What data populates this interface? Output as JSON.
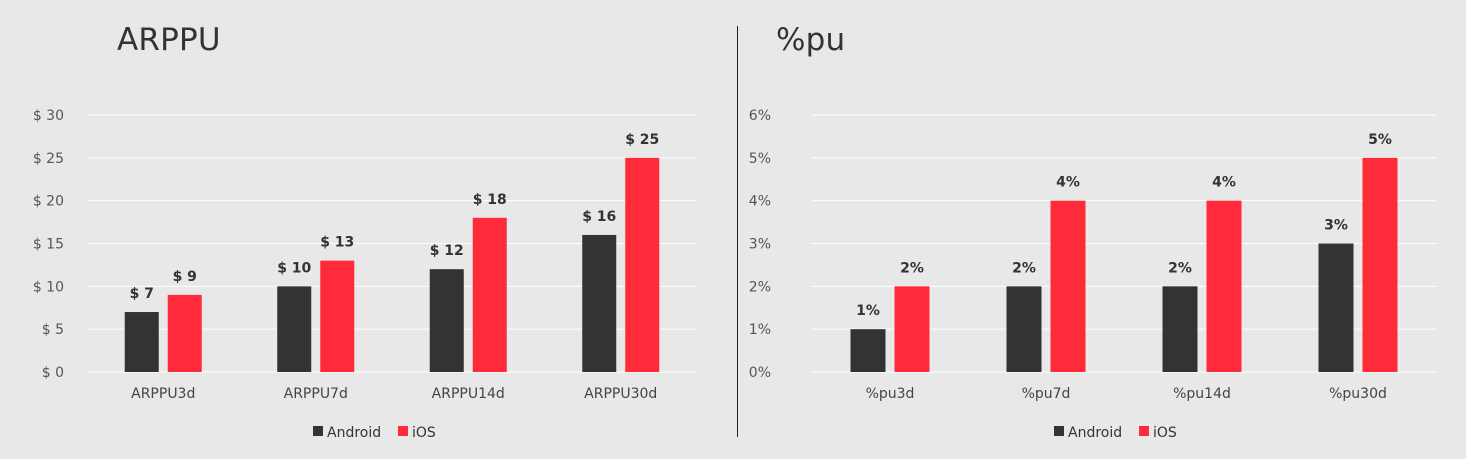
{
  "colors": {
    "android": "#333333",
    "ios": "#ff2b3a",
    "grid": "#ffffff"
  },
  "chart_data": [
    {
      "type": "bar",
      "title": "ARPPU",
      "xlabel": "",
      "ylabel": "",
      "categories": [
        "ARPPU3d",
        "ARPPU7d",
        "ARPPU14d",
        "ARPPU30d"
      ],
      "series": [
        {
          "name": "Android",
          "values": [
            7,
            10,
            12,
            16
          ],
          "labels": [
            "$ 7",
            "$ 10",
            "$ 12",
            "$ 16"
          ]
        },
        {
          "name": "iOS",
          "values": [
            9,
            13,
            18,
            25
          ],
          "labels": [
            "$ 9",
            "$ 13",
            "$ 18",
            "$ 25"
          ]
        }
      ],
      "ylim": [
        0,
        30
      ],
      "yticks": [
        0,
        5,
        10,
        15,
        20,
        25,
        30
      ],
      "ytick_labels": [
        "$ 0",
        "$ 5",
        "$ 10",
        "$ 15",
        "$ 20",
        "$ 25",
        "$ 30"
      ],
      "grid": true,
      "legend": "bottom"
    },
    {
      "type": "bar",
      "title": "%pu",
      "xlabel": "",
      "ylabel": "",
      "categories": [
        "%pu3d",
        "%pu7d",
        "%pu14d",
        "%pu30d"
      ],
      "series": [
        {
          "name": "Android",
          "values": [
            1,
            2,
            2,
            3
          ],
          "labels": [
            "1%",
            "2%",
            "2%",
            "3%"
          ]
        },
        {
          "name": "iOS",
          "values": [
            2,
            4,
            4,
            5
          ],
          "labels": [
            "2%",
            "4%",
            "4%",
            "5%"
          ]
        }
      ],
      "ylim": [
        0,
        6
      ],
      "yticks": [
        0,
        1,
        2,
        3,
        4,
        5,
        6
      ],
      "ytick_labels": [
        "0%",
        "1%",
        "2%",
        "3%",
        "4%",
        "5%",
        "6%"
      ],
      "grid": true,
      "legend": "bottom"
    }
  ]
}
